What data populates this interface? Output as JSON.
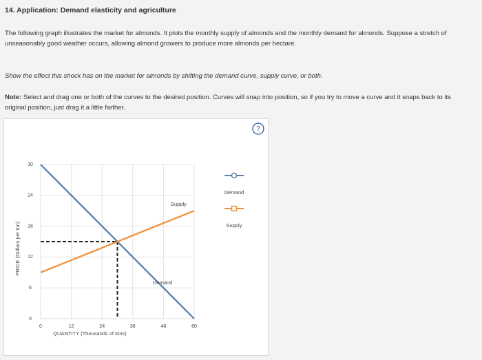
{
  "question": {
    "title": "14. Application: Demand elasticity and agriculture",
    "intro": "The following graph illustrates the market for almonds. It plots the monthly supply of almonds and the monthly demand for almonds. Suppose a stretch of unseasonably good weather occurs, allowing almond growers to produce more almonds per hectare.",
    "instruction": "Show the effect this shock has on the market for almonds by shifting the demand curve, supply curve, or both.",
    "note_label": "Note:",
    "note": "Select and drag one or both of the curves to the desired position. Curves will snap into position, so if you try to move a curve and it snaps back to its original position, just drag it a little farther.",
    "help_icon": "?"
  },
  "chart_data": {
    "type": "line",
    "x_label": "QUANTITY (Thousands of tons)",
    "y_label": "PRICE (Dollars per ton)",
    "x": [
      0,
      60
    ],
    "series": [
      {
        "name": "Demand",
        "color": "#5b7fa8",
        "values": [
          30,
          0
        ]
      },
      {
        "name": "Supply",
        "color": "#f0913a",
        "values": [
          9,
          21
        ]
      }
    ],
    "equilibrium": {
      "x": 30,
      "y": 15
    },
    "xlim": [
      0,
      60
    ],
    "ylim": [
      0,
      30
    ],
    "xticks": [
      0,
      12,
      24,
      36,
      48,
      60
    ],
    "yticks": [
      0,
      6,
      12,
      18,
      24,
      30
    ],
    "grid": true,
    "legend": "right"
  }
}
